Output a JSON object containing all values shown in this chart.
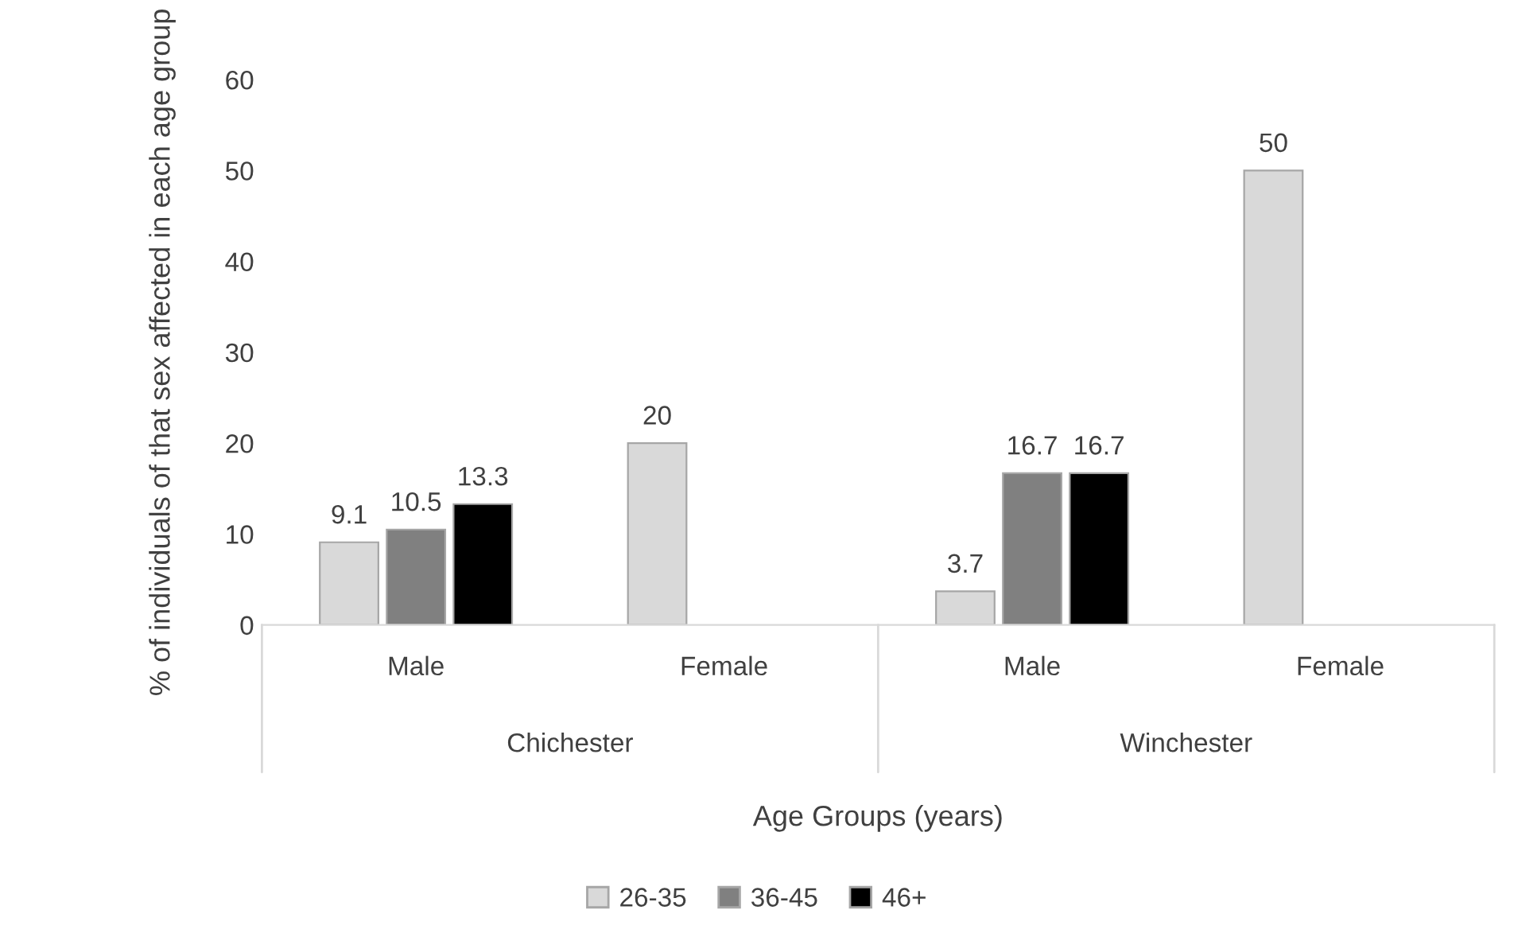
{
  "chart_data": {
    "type": "bar",
    "categories": [
      "Male",
      "Female",
      "Male",
      "Female"
    ],
    "series": [
      {
        "name": "26-35",
        "color": "#d9d9d9",
        "values": [
          9.1,
          20,
          3.7,
          50
        ]
      },
      {
        "name": "36-45",
        "color": "#808080",
        "values": [
          10.5,
          null,
          16.7,
          null
        ]
      },
      {
        "name": "46+",
        "color": "#000000",
        "values": [
          13.3,
          null,
          16.7,
          null
        ]
      }
    ],
    "annotations": [
      "Chichester",
      "Winchester"
    ],
    "xlabel": "Age Groups (years)",
    "ylabel": "% of individuals of that sex affected in each age group",
    "ylim": [
      0,
      60
    ],
    "yticks": [
      0,
      10,
      20,
      30,
      40,
      50,
      60
    ],
    "data_labels": true,
    "legend": "bottom",
    "grid": false
  }
}
